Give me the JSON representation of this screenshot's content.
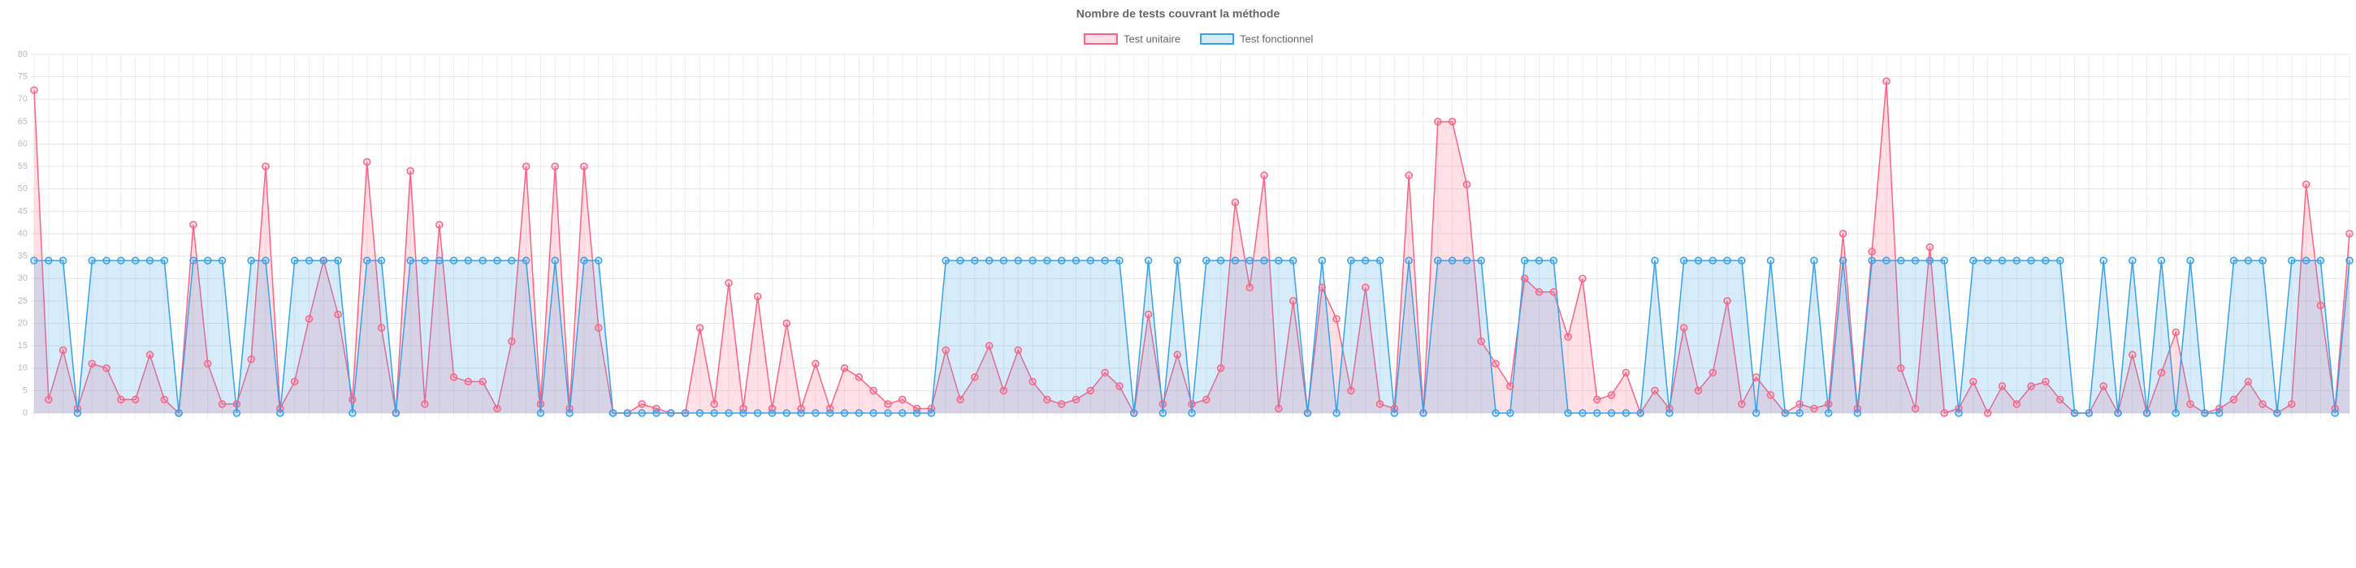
{
  "chart_data": {
    "type": "line",
    "title": "Nombre de tests couvrant la méthode",
    "categories": [
      null,
      null,
      null,
      null,
      null,
      null,
      null,
      null,
      null,
      null,
      null,
      null,
      null,
      null,
      null,
      null,
      null,
      null,
      null,
      null,
      null,
      null,
      null,
      null,
      null,
      null,
      null,
      null,
      null,
      null,
      null,
      null,
      null,
      null,
      null,
      null,
      null,
      null,
      null,
      null,
      null,
      null,
      null,
      null,
      null,
      null,
      null,
      null,
      null,
      null,
      null,
      null,
      null,
      null,
      null,
      null,
      null,
      null,
      null,
      null,
      null,
      null,
      null,
      null,
      null,
      null,
      null,
      null,
      null,
      null,
      null,
      null,
      null,
      null,
      null,
      null,
      null,
      null,
      null,
      null,
      null,
      null,
      null,
      null,
      null,
      null,
      null,
      null,
      null,
      null,
      null,
      null,
      null,
      null,
      null,
      null,
      null,
      null,
      null,
      null,
      null,
      null,
      null,
      null,
      null,
      null,
      null,
      null,
      null,
      null,
      null,
      null,
      null,
      null,
      null,
      null,
      null,
      null,
      null,
      null,
      null,
      null,
      null,
      null,
      null,
      null,
      null,
      null,
      null,
      null,
      null,
      null,
      null,
      null,
      null,
      null,
      null,
      null,
      null,
      null,
      null,
      null,
      null,
      null,
      null,
      null,
      null,
      null,
      null,
      null,
      null,
      null,
      null,
      null,
      null,
      null,
      null,
      null,
      null,
      null,
      null
    ],
    "series": [
      {
        "name": "Test unitaire",
        "color": "#ff6384",
        "fill": "rgba(255,99,132,0.2)",
        "values": [
          72,
          3,
          14,
          1,
          11,
          10,
          3,
          3,
          13,
          3,
          0,
          42,
          11,
          2,
          2,
          12,
          55,
          1,
          7,
          21,
          34,
          22,
          3,
          56,
          19,
          0,
          54,
          2,
          42,
          8,
          7,
          7,
          1,
          16,
          55,
          2,
          55,
          1,
          55,
          19,
          0,
          0,
          2,
          1,
          0,
          0,
          19,
          2,
          29,
          1,
          26,
          1,
          20,
          1,
          11,
          1,
          10,
          8,
          5,
          2,
          3,
          1,
          1,
          14,
          3,
          8,
          15,
          5,
          14,
          7,
          3,
          2,
          3,
          5,
          9,
          6,
          0,
          22,
          2,
          13,
          2,
          3,
          10,
          47,
          28,
          53,
          1,
          25,
          0,
          28,
          21,
          5,
          28,
          2,
          1,
          53,
          0,
          65,
          65,
          51,
          16,
          11,
          6,
          30,
          27,
          27,
          17,
          30,
          3,
          4,
          9,
          0,
          5,
          1,
          19,
          5,
          9,
          25,
          2,
          8,
          4,
          0,
          2,
          1,
          2,
          40,
          1,
          36,
          74,
          10,
          1,
          37,
          0,
          1,
          7,
          0,
          6,
          2,
          6,
          7,
          3,
          0,
          0,
          6,
          0,
          13,
          0,
          9,
          18,
          2,
          0,
          1,
          3,
          7,
          2,
          0,
          2,
          51,
          24,
          1,
          40
        ]
      },
      {
        "name": "Test fonctionnel",
        "color": "#36a2eb",
        "fill": "rgba(54,162,235,0.2)",
        "values": [
          34,
          34,
          34,
          0,
          34,
          34,
          34,
          34,
          34,
          34,
          0,
          34,
          34,
          34,
          0,
          34,
          34,
          0,
          34,
          34,
          34,
          34,
          0,
          34,
          34,
          0,
          34,
          34,
          34,
          34,
          34,
          34,
          34,
          34,
          34,
          0,
          34,
          0,
          34,
          34,
          0,
          0,
          0,
          0,
          0,
          0,
          0,
          0,
          0,
          0,
          0,
          0,
          0,
          0,
          0,
          0,
          0,
          0,
          0,
          0,
          0,
          0,
          0,
          34,
          34,
          34,
          34,
          34,
          34,
          34,
          34,
          34,
          34,
          34,
          34,
          34,
          0,
          34,
          0,
          34,
          0,
          34,
          34,
          34,
          34,
          34,
          34,
          34,
          0,
          34,
          0,
          34,
          34,
          34,
          0,
          34,
          0,
          34,
          34,
          34,
          34,
          0,
          0,
          34,
          34,
          34,
          0,
          0,
          0,
          0,
          0,
          0,
          34,
          0,
          34,
          34,
          34,
          34,
          34,
          0,
          34,
          0,
          0,
          34,
          0,
          34,
          0,
          34,
          34,
          34,
          34,
          34,
          34,
          0,
          34,
          34,
          34,
          34,
          34,
          34,
          34,
          0,
          0,
          34,
          0,
          34,
          0,
          34,
          0,
          34,
          0,
          0,
          34,
          34,
          34,
          0,
          34,
          34,
          34,
          0,
          34
        ]
      }
    ],
    "ylim": [
      0,
      80
    ],
    "yticks": [
      0,
      5,
      10,
      15,
      20,
      25,
      30,
      35,
      40,
      45,
      50,
      55,
      60,
      65,
      70,
      75,
      80
    ],
    "grid": true,
    "legend": "top"
  }
}
